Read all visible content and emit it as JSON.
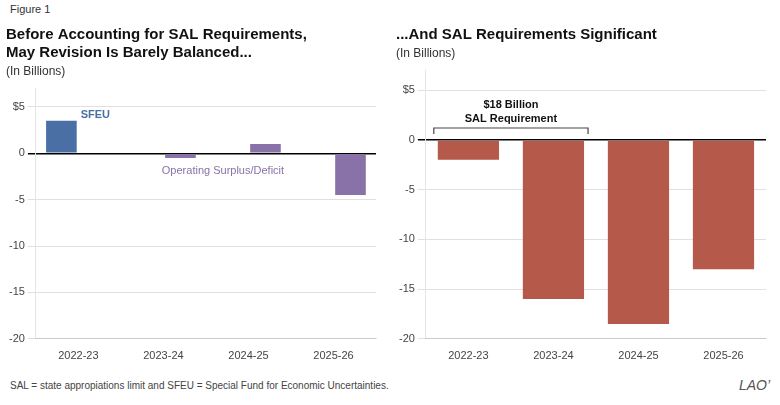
{
  "figure_label": "Figure 1",
  "footnote": "SAL = state appropiations limit and SFEU = Special Fund for Economic Uncertainties.",
  "logo": "LAO’",
  "chart_data": [
    {
      "type": "bar",
      "title": [
        "Before Accounting for SAL Requirements,",
        "May Revision Is Barely Balanced..."
      ],
      "subtitle": "(In Billions)",
      "categories": [
        "2022-23",
        "2023-24",
        "2024-25",
        "2025-26"
      ],
      "series": [
        {
          "name": "SFEU",
          "color": "#4a6fa5",
          "values": [
            3.5,
            0,
            0,
            0
          ]
        },
        {
          "name": "Operating Surplus/Deficit",
          "color": "#8872a8",
          "values": [
            0,
            -0.5,
            1.0,
            -4.5
          ]
        }
      ],
      "ylim": [
        -20,
        7
      ],
      "yticks": [
        {
          "value": 5,
          "label": "$5"
        },
        0,
        -5,
        -10,
        -15,
        -20
      ],
      "grid": true
    },
    {
      "type": "bar",
      "title": "...And SAL Requirements Significant",
      "subtitle": "(In Billions)",
      "categories": [
        "2022-23",
        "2023-24",
        "2024-25",
        "2025-26"
      ],
      "values": [
        -2.0,
        -16.0,
        -18.5,
        -13.0
      ],
      "color": "#b5594a",
      "ylim": [
        -20,
        7
      ],
      "yticks": [
        {
          "value": 5,
          "label": "$5"
        },
        0,
        -5,
        -10,
        -15,
        -20
      ],
      "grid": true,
      "annotation": "$18 Billion\nSAL Requirement"
    }
  ]
}
